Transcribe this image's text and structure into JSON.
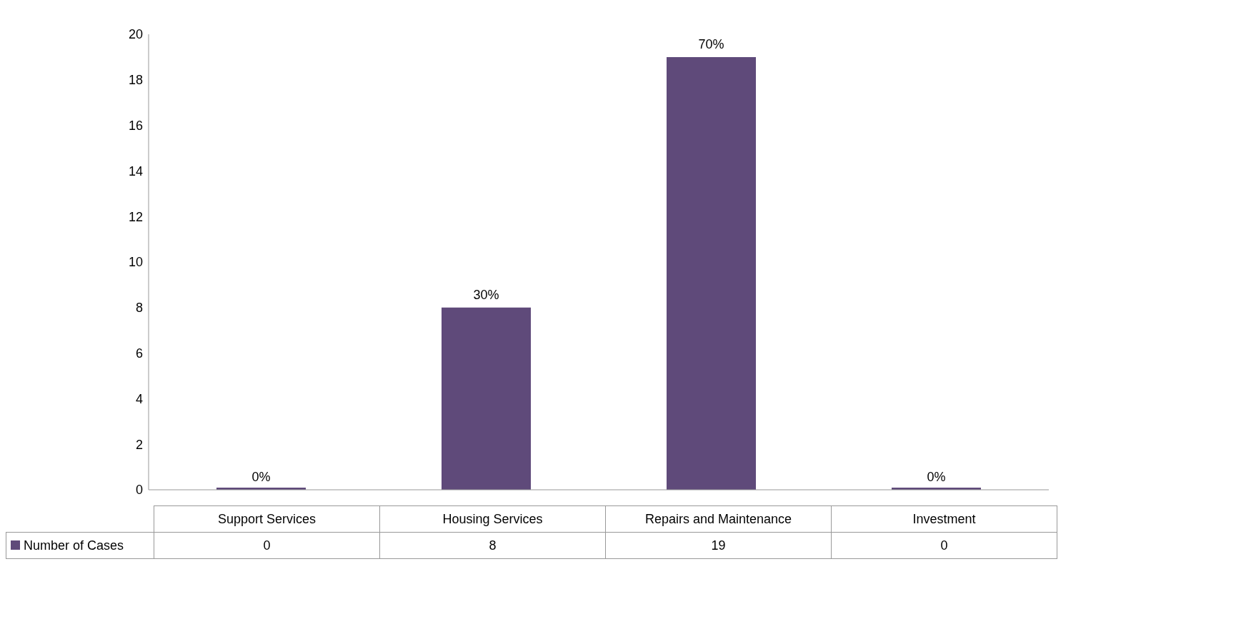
{
  "chart_data": {
    "type": "bar",
    "categories": [
      "Support Services",
      "Housing Services",
      "Repairs and Maintenance",
      "Investment"
    ],
    "series": [
      {
        "name": "Number of Cases",
        "color": "#5f4a7a",
        "values": [
          0,
          8,
          19,
          0
        ],
        "value_labels": [
          "0",
          "8",
          "19",
          "0"
        ]
      }
    ],
    "annotations": [
      {
        "text": "0%",
        "x": "Support Services",
        "y": 0
      },
      {
        "text": "30%",
        "x": "Housing Services",
        "y": 8
      },
      {
        "text": "70%",
        "x": "Repairs and Maintenance",
        "y": 19
      },
      {
        "text": "0%",
        "x": "Investment",
        "y": 0
      }
    ],
    "ylim": [
      0,
      20
    ],
    "yticks": [
      0,
      2,
      4,
      6,
      8,
      10,
      12,
      14,
      16,
      18,
      20
    ],
    "grid": false,
    "legend": "bottom"
  }
}
